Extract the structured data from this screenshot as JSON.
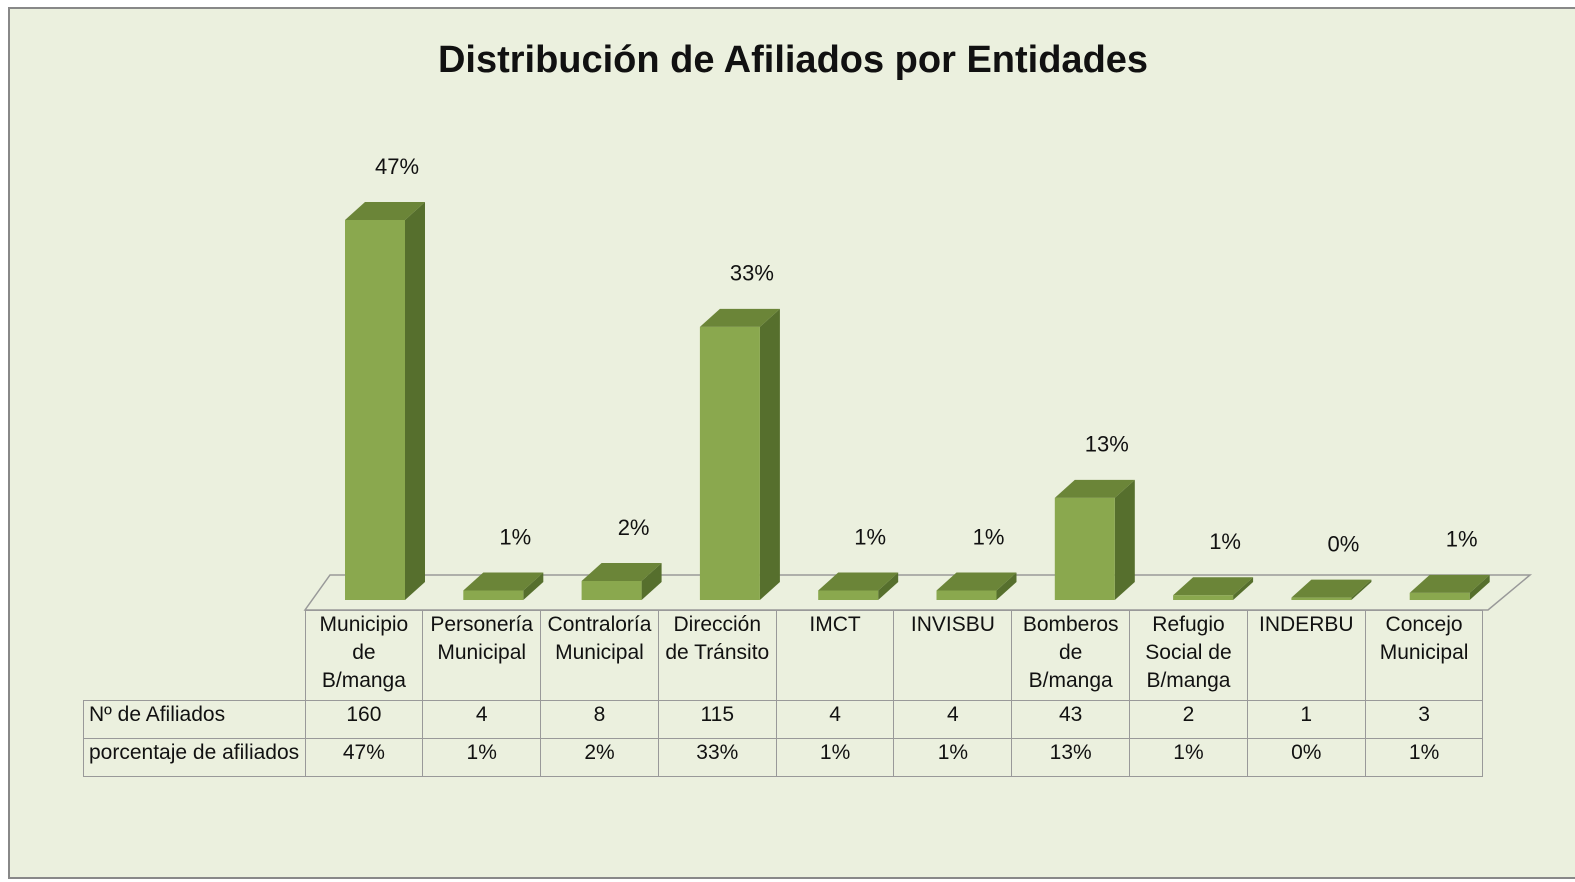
{
  "chart_data": {
    "type": "bar3d",
    "title": "Distribución de Afiliados por Entidades",
    "categories": [
      "Municipio\nde\nB/manga",
      "Personería\nMunicipal",
      "Contraloría\nMunicipal",
      "Dirección\nde Tránsito",
      "IMCT",
      "INVISBU",
      "Bomberos\nde\nB/manga",
      "Refugio\nSocial de\nB/manga",
      "INDERBU",
      "Concejo\nMunicipal"
    ],
    "series": [
      {
        "name": "Nº de Afiliados",
        "color": "#8aa84e",
        "values": [
          160,
          4,
          8,
          115,
          4,
          4,
          43,
          2,
          1,
          3
        ]
      },
      {
        "name": "porcentaje de afiliados",
        "values": [
          47,
          1,
          2,
          33,
          1,
          1,
          13,
          1,
          0,
          1
        ],
        "value_labels": [
          "47%",
          "1%",
          "2%",
          "33%",
          "1%",
          "1%",
          "13%",
          "1%",
          "0%",
          "1%"
        ]
      }
    ]
  }
}
